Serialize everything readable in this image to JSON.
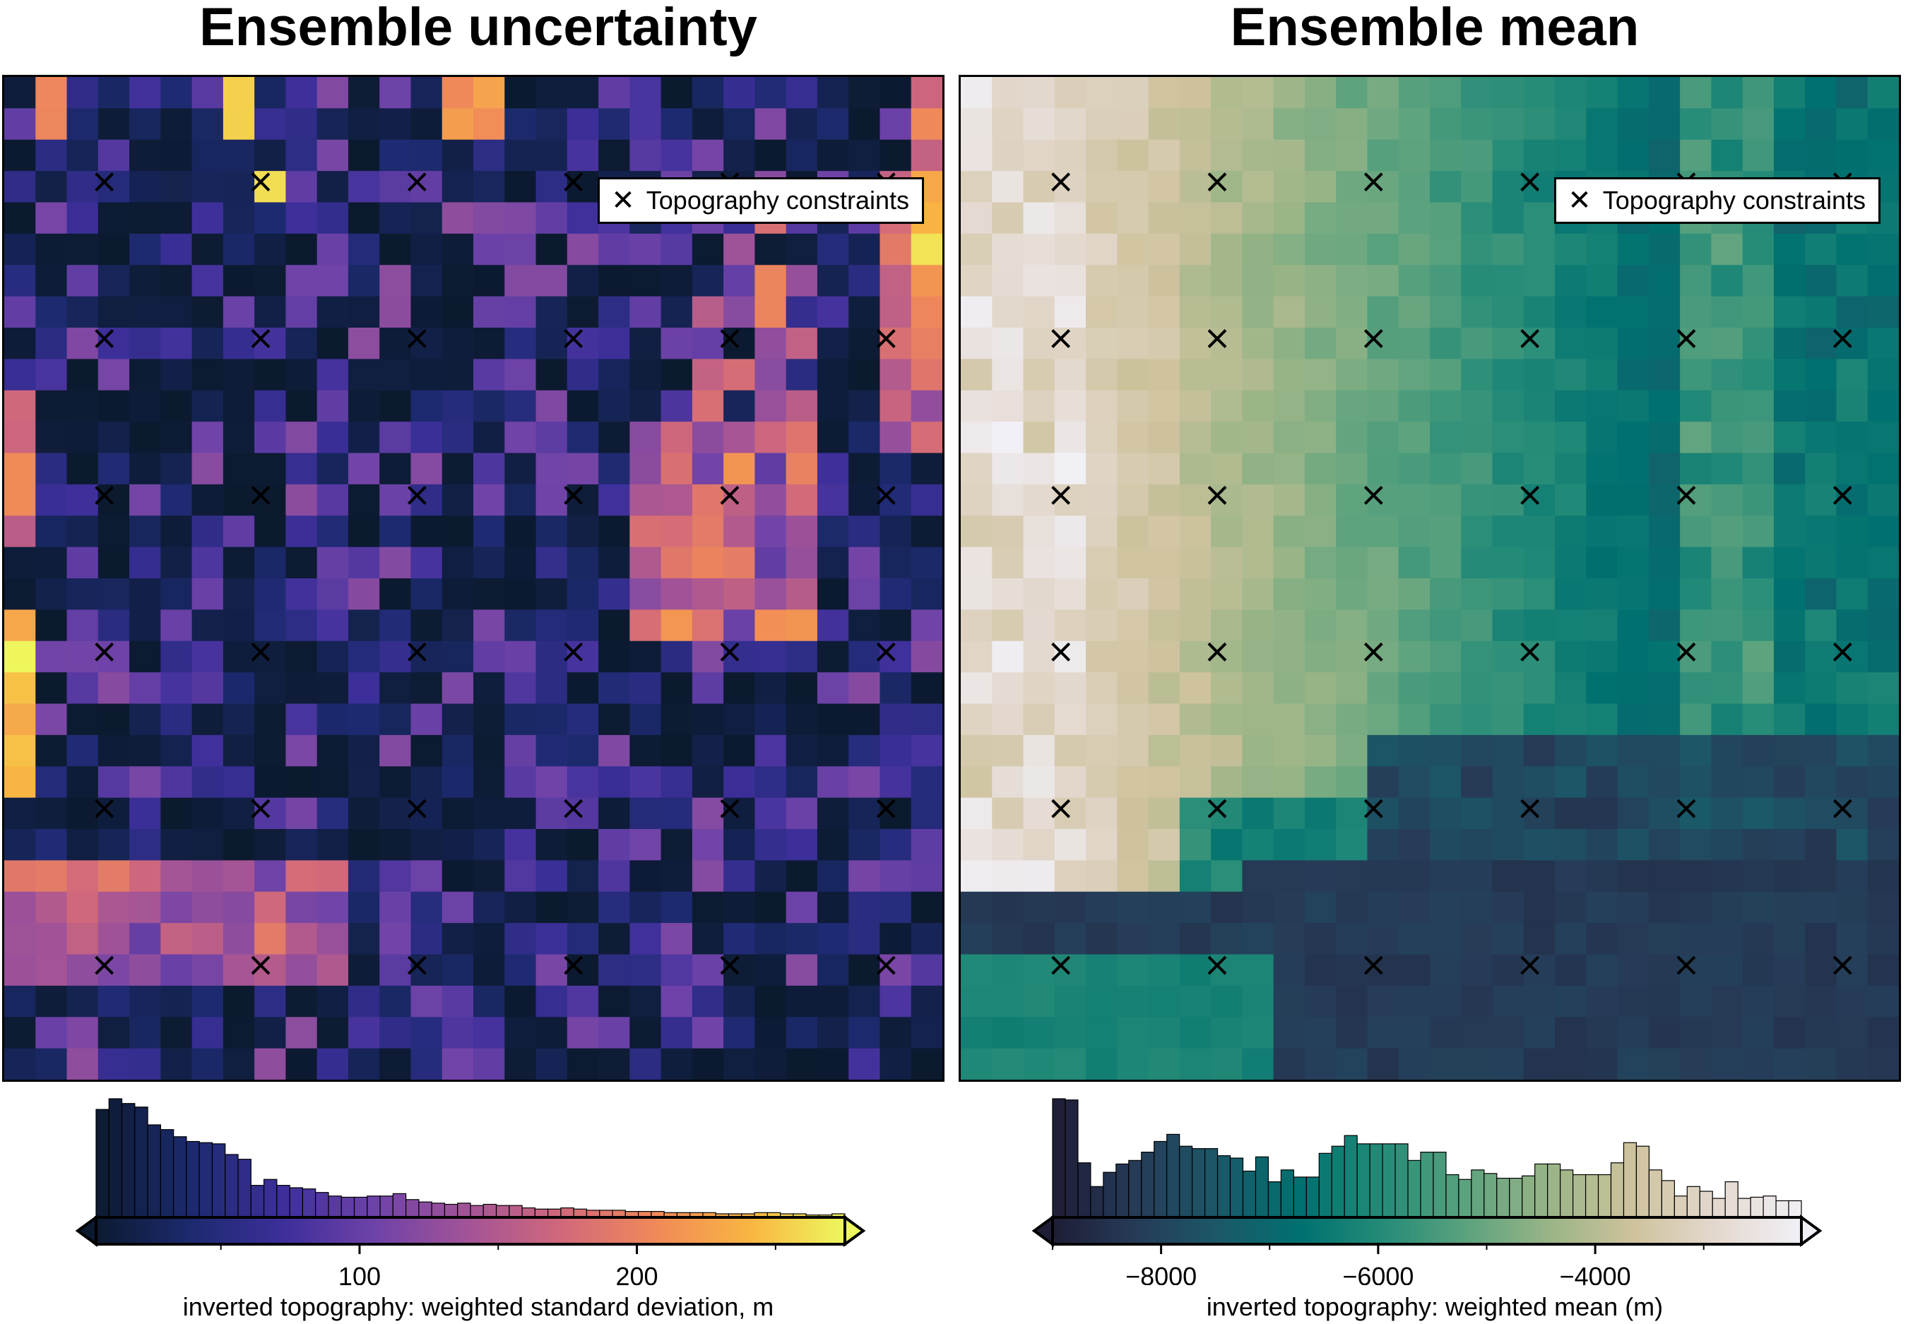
{
  "left": {
    "title": "Ensemble uncertainty",
    "legend_label": "Topography constraints",
    "legend_icon": "x-marker-icon",
    "colorbar_label": "inverted topography: weighted standard deviation, m",
    "colormap": [
      "#0c1a30",
      "#1c2a6e",
      "#3d2f9a",
      "#6f43a8",
      "#a45496",
      "#d2697a",
      "#f08a58",
      "#f9b642",
      "#edf85e"
    ],
    "data_range": [
      5,
      275
    ],
    "ticks": [
      100,
      200
    ],
    "grid": {
      "cols": 30,
      "rows": 32
    },
    "histogram": [
      0.91,
      1.0,
      0.96,
      0.93,
      0.78,
      0.74,
      0.68,
      0.64,
      0.63,
      0.62,
      0.53,
      0.49,
      0.27,
      0.32,
      0.27,
      0.25,
      0.24,
      0.21,
      0.18,
      0.17,
      0.17,
      0.18,
      0.18,
      0.2,
      0.15,
      0.13,
      0.12,
      0.11,
      0.12,
      0.1,
      0.11,
      0.1,
      0.1,
      0.08,
      0.07,
      0.07,
      0.08,
      0.07,
      0.06,
      0.06,
      0.06,
      0.05,
      0.05,
      0.05,
      0.04,
      0.04,
      0.04,
      0.04,
      0.03,
      0.03,
      0.03,
      0.04,
      0.04,
      0.03,
      0.03,
      0.02,
      0.02,
      0.03
    ]
  },
  "right": {
    "title": "Ensemble mean",
    "legend_label": "Topography constraints",
    "legend_icon": "x-marker-icon",
    "colorbar_label": "inverted topography: weighted mean (m)",
    "colormap": [
      "#1e1d36",
      "#263b57",
      "#1b5868",
      "#007170",
      "#268c78",
      "#5da37e",
      "#9bb587",
      "#cfc39e",
      "#e4d9cf",
      "#f1f0f6"
    ],
    "data_range": [
      -9000,
      -2100
    ],
    "ticks": [
      -8000,
      -6000,
      -4000
    ],
    "grid": {
      "cols": 30,
      "rows": 32
    },
    "histogram": [
      1.0,
      0.99,
      0.46,
      0.26,
      0.38,
      0.45,
      0.48,
      0.55,
      0.64,
      0.7,
      0.6,
      0.58,
      0.58,
      0.52,
      0.5,
      0.39,
      0.51,
      0.3,
      0.4,
      0.34,
      0.34,
      0.54,
      0.6,
      0.69,
      0.62,
      0.62,
      0.62,
      0.62,
      0.48,
      0.55,
      0.55,
      0.36,
      0.32,
      0.4,
      0.37,
      0.33,
      0.33,
      0.35,
      0.45,
      0.45,
      0.4,
      0.36,
      0.36,
      0.36,
      0.46,
      0.63,
      0.6,
      0.4,
      0.31,
      0.18,
      0.26,
      0.22,
      0.16,
      0.3,
      0.16,
      0.17,
      0.18,
      0.14,
      0.14
    ]
  },
  "chart_data": [
    {
      "type": "heatmap",
      "title": "Ensemble uncertainty",
      "colorbar_label": "inverted topography: weighted standard deviation, m",
      "color_range": [
        5,
        275
      ],
      "colorbar_ticks": [
        100,
        200
      ],
      "legend": [
        "Topography constraints"
      ],
      "legend_position": "top-right",
      "constraint_points": {
        "cols": [
          3,
          8,
          13,
          18,
          23,
          28
        ],
        "rows": [
          3,
          8,
          13,
          18,
          23,
          28
        ]
      }
    },
    {
      "type": "heatmap",
      "title": "Ensemble mean",
      "colorbar_label": "inverted topography: weighted mean (m)",
      "color_range": [
        -9000,
        -2100
      ],
      "colorbar_ticks": [
        -8000,
        -6000,
        -4000
      ],
      "legend": [
        "Topography constraints"
      ],
      "legend_position": "top-right",
      "constraint_points": {
        "cols": [
          3,
          8,
          13,
          18,
          23,
          28
        ],
        "rows": [
          3,
          8,
          13,
          18,
          23,
          28
        ]
      }
    }
  ]
}
